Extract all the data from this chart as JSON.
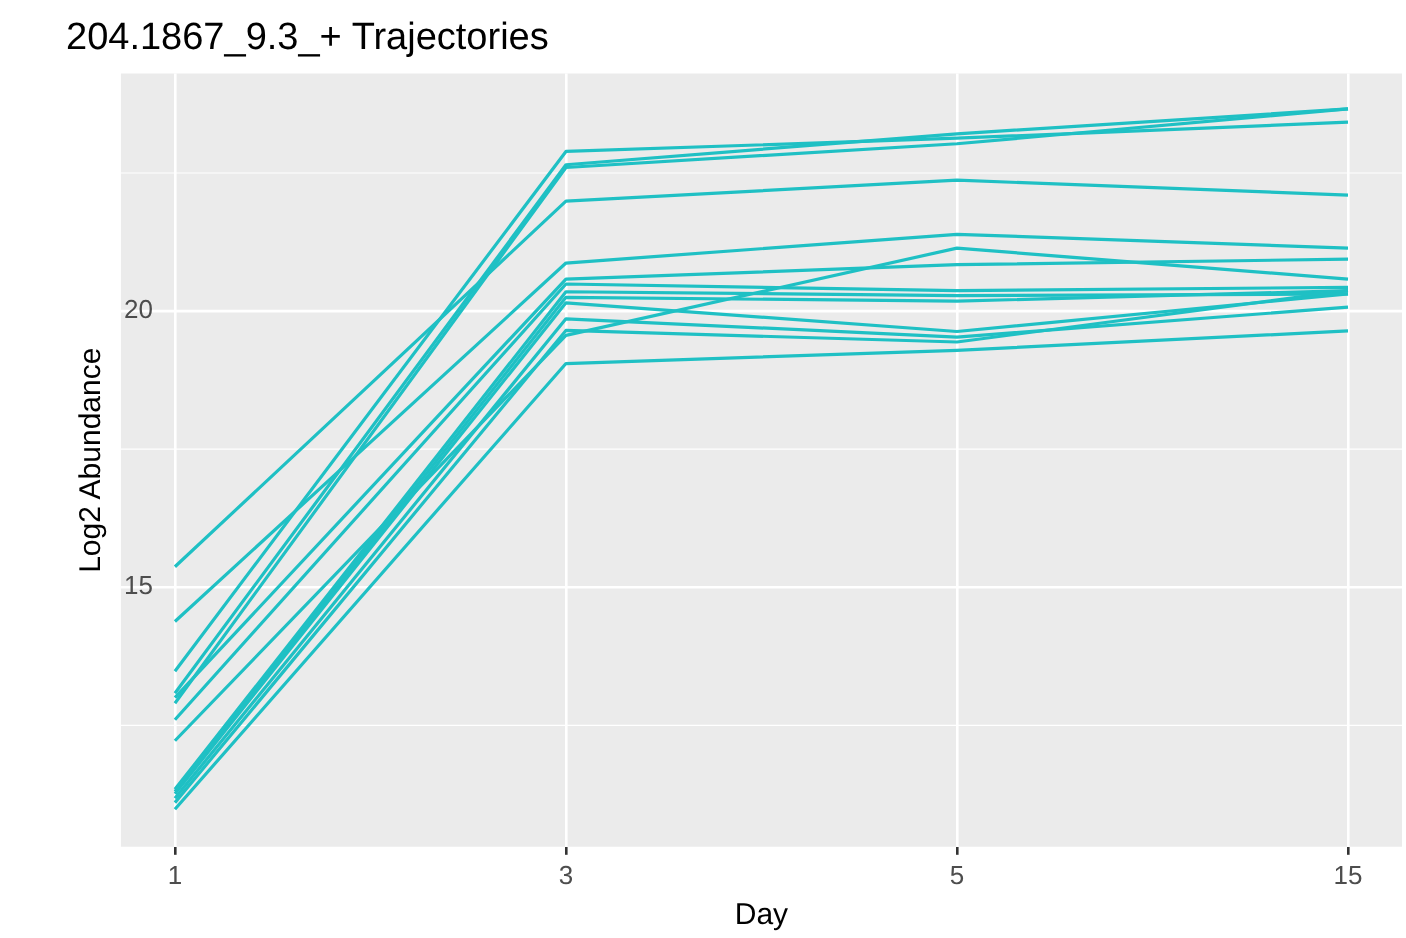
{
  "chart_data": {
    "type": "line",
    "title": "204.1867_9.3_+ Trajectories",
    "xlabel": "Day",
    "ylabel": "Log2 Abundance",
    "categories": [
      "1",
      "3",
      "5",
      "15"
    ],
    "ylim": [
      10.3,
      24.3
    ],
    "yticks": [
      {
        "value": 12.5,
        "label": null
      },
      15,
      {
        "value": 17.5,
        "label": null
      },
      20,
      {
        "value": 22.5,
        "label": null
      }
    ],
    "grid": true,
    "legend": false,
    "marker": "none",
    "line_style": "solid",
    "series": [
      {
        "color": "#1fc0c4",
        "values": [
          15.37,
          21.99,
          22.37,
          22.1
        ]
      },
      {
        "color": "#1fc0c4",
        "values": [
          14.38,
          20.87,
          21.39,
          21.14
        ]
      },
      {
        "color": "#1fc0c4",
        "values": [
          13.48,
          22.89,
          23.13,
          23.42
        ]
      },
      {
        "color": "#1fc0c4",
        "values": [
          13.08,
          22.65,
          23.21,
          23.66
        ]
      },
      {
        "color": "#1fc0c4",
        "values": [
          12.9,
          22.6,
          23.03,
          23.66
        ]
      },
      {
        "color": "#1fc0c4",
        "values": [
          13.0,
          20.58,
          20.84,
          20.94
        ]
      },
      {
        "color": "#1fc0c4",
        "values": [
          12.6,
          20.49,
          20.37,
          20.43
        ]
      },
      {
        "color": "#1fc0c4",
        "values": [
          12.22,
          19.56,
          21.14,
          20.58
        ]
      },
      {
        "color": "#1fc0c4",
        "values": [
          11.34,
          20.35,
          20.28,
          20.31
        ]
      },
      {
        "color": "#1fc0c4",
        "values": [
          11.3,
          20.25,
          20.18,
          20.37
        ]
      },
      {
        "color": "#1fc0c4",
        "values": [
          11.26,
          20.15,
          19.63,
          20.31
        ]
      },
      {
        "color": "#1fc0c4",
        "values": [
          11.18,
          19.86,
          19.53,
          20.07
        ]
      },
      {
        "color": "#1fc0c4",
        "values": [
          11.1,
          19.65,
          19.44,
          20.37
        ]
      },
      {
        "color": "#1fc0c4",
        "values": [
          10.98,
          19.05,
          19.29,
          19.64
        ]
      }
    ]
  }
}
